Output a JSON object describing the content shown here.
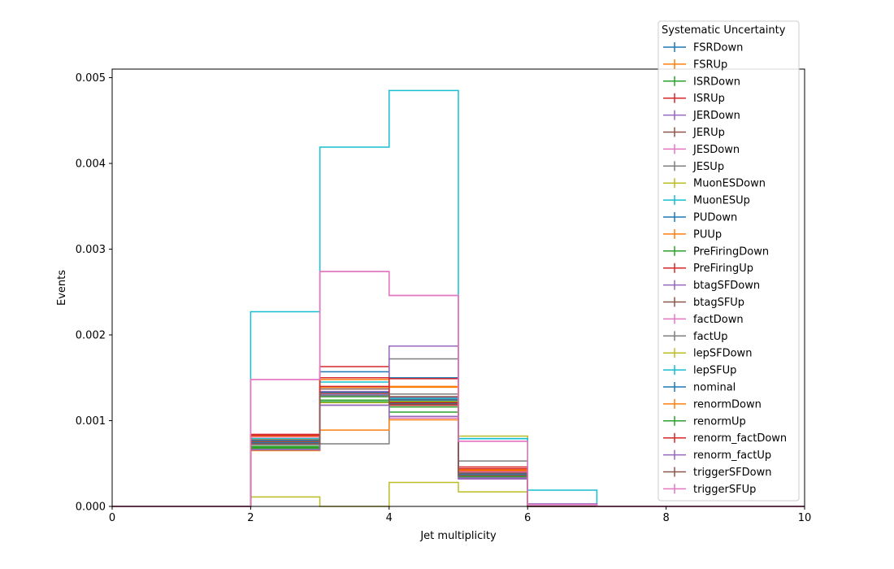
{
  "chart_data": {
    "type": "line",
    "title": "",
    "xlabel": "Jet multiplicity",
    "ylabel": "Events",
    "xlim": [
      0,
      10
    ],
    "ylim": [
      0,
      0.0051
    ],
    "grid": false,
    "legend_position": "top-right",
    "legend_title": "Systematic Uncertainty",
    "x_ticks": [
      "0",
      "2",
      "4",
      "6",
      "8",
      "10"
    ],
    "y_ticks": [
      "0.000",
      "0.001",
      "0.002",
      "0.003",
      "0.004",
      "0.005"
    ],
    "bin_edges": [
      0,
      1,
      2,
      3,
      4,
      5,
      6,
      7,
      8,
      9,
      10
    ],
    "series": [
      {
        "name": "FSRDown",
        "color": "#1f77b4",
        "values": [
          0,
          0,
          0.00073,
          0.0013,
          0.0012,
          0.00036,
          0,
          0,
          0,
          0
        ]
      },
      {
        "name": "FSRUp",
        "color": "#ff7f0e",
        "values": [
          0,
          0,
          0.00078,
          0.00139,
          0.00139,
          0.00043,
          0,
          0,
          0,
          0
        ]
      },
      {
        "name": "ISRDown",
        "color": "#2ca02c",
        "values": [
          0,
          0,
          0.0007,
          0.00128,
          0.0011,
          0.00034,
          0,
          0,
          0,
          0
        ]
      },
      {
        "name": "ISRUp",
        "color": "#d62728",
        "values": [
          0,
          0,
          0.00079,
          0.0014,
          0.00118,
          0.00041,
          0,
          0,
          0,
          0
        ]
      },
      {
        "name": "JERDown",
        "color": "#9467bd",
        "values": [
          0,
          0,
          0.00074,
          0.00134,
          0.00127,
          0.00037,
          0,
          0,
          0,
          0
        ]
      },
      {
        "name": "JERUp",
        "color": "#8c564b",
        "values": [
          0,
          0,
          0.00075,
          0.00133,
          0.00125,
          0.00038,
          0,
          0,
          0,
          0
        ]
      },
      {
        "name": "JESDown",
        "color": "#e377c2",
        "values": [
          0,
          0,
          0.00081,
          0.00131,
          0.00103,
          0.0004,
          0,
          0,
          0,
          0
        ]
      },
      {
        "name": "JESUp",
        "color": "#7f7f7f",
        "values": [
          0,
          0,
          0.00067,
          0.00073,
          0.00172,
          0.00053,
          0,
          0,
          0,
          0
        ]
      },
      {
        "name": "MuonESDown",
        "color": "#bcbd22",
        "values": [
          0,
          0,
          0.00011,
          0,
          0.00028,
          0.00017,
          0,
          0,
          0,
          0
        ]
      },
      {
        "name": "MuonESUp",
        "color": "#17becf",
        "values": [
          0,
          0,
          0.00227,
          0.00419,
          0.00485,
          0.00079,
          0.00019,
          0,
          0,
          0
        ]
      },
      {
        "name": "PUDown",
        "color": "#1f77b4",
        "values": [
          0,
          0,
          0.00077,
          0.00157,
          0.0015,
          0.00038,
          0,
          0,
          0,
          0
        ]
      },
      {
        "name": "PUUp",
        "color": "#ff7f0e",
        "values": [
          0,
          0,
          0.00065,
          0.00089,
          0.00101,
          0.00037,
          0,
          0,
          0,
          0
        ]
      },
      {
        "name": "PreFiringDown",
        "color": "#2ca02c",
        "values": [
          0,
          0,
          0.00069,
          0.00124,
          0.00122,
          0.00035,
          0,
          0,
          0,
          0
        ]
      },
      {
        "name": "PreFiringUp",
        "color": "#d62728",
        "values": [
          0,
          0,
          0.00084,
          0.00163,
          0.00149,
          0.00046,
          0,
          0,
          0,
          0
        ]
      },
      {
        "name": "btagSFDown",
        "color": "#9467bd",
        "values": [
          0,
          0,
          0.00068,
          0.00118,
          0.00187,
          0.00032,
          3e-05,
          0,
          0,
          0
        ]
      },
      {
        "name": "btagSFUp",
        "color": "#8c564b",
        "values": [
          0,
          0,
          0.00076,
          0.00137,
          0.00128,
          0.00039,
          2e-05,
          0,
          0,
          0
        ]
      },
      {
        "name": "factDown",
        "color": "#e377c2",
        "values": [
          0,
          0,
          0.00148,
          0.00274,
          0.00246,
          0.00076,
          2e-05,
          0,
          0,
          0
        ]
      },
      {
        "name": "factUp",
        "color": "#7f7f7f",
        "values": [
          0,
          0,
          0.00072,
          0.00129,
          0.00131,
          0.00034,
          0,
          0,
          0,
          0
        ]
      },
      {
        "name": "lepSFDown",
        "color": "#bcbd22",
        "values": [
          0,
          0,
          0.00066,
          0.00121,
          0.00123,
          0.00082,
          0,
          0,
          0,
          0
        ]
      },
      {
        "name": "lepSFUp",
        "color": "#17becf",
        "values": [
          0,
          0,
          0.00079,
          0.00145,
          0.00126,
          0.00079,
          0,
          0,
          0,
          0
        ]
      },
      {
        "name": "nominal",
        "color": "#1f77b4",
        "values": [
          0,
          0,
          0.00074,
          0.00133,
          0.00124,
          0.00037,
          0,
          0,
          0,
          0
        ]
      },
      {
        "name": "renormDown",
        "color": "#ff7f0e",
        "values": [
          0,
          0,
          0.00082,
          0.00148,
          0.0014,
          0.00042,
          0,
          0,
          0,
          0
        ]
      },
      {
        "name": "renormUp",
        "color": "#2ca02c",
        "values": [
          0,
          0,
          0.00068,
          0.00122,
          0.00116,
          0.00035,
          0,
          0,
          0,
          0
        ]
      },
      {
        "name": "renorm_factDown",
        "color": "#d62728",
        "values": [
          0,
          0,
          0.00083,
          0.0015,
          0.00121,
          0.00044,
          0,
          0,
          0,
          0
        ]
      },
      {
        "name": "renorm_factUp",
        "color": "#9467bd",
        "values": [
          0,
          0,
          0.00066,
          0.00118,
          0.00105,
          0.00033,
          0,
          0,
          0,
          0
        ]
      },
      {
        "name": "triggerSFDown",
        "color": "#8c564b",
        "values": [
          0,
          0,
          0.00073,
          0.00132,
          0.00119,
          0.00036,
          0,
          0,
          0,
          0
        ]
      },
      {
        "name": "triggerSFUp",
        "color": "#e377c2",
        "values": [
          0,
          0,
          0.00148,
          0.00274,
          0.00246,
          0.00076,
          2e-05,
          0,
          0,
          0
        ]
      }
    ]
  }
}
